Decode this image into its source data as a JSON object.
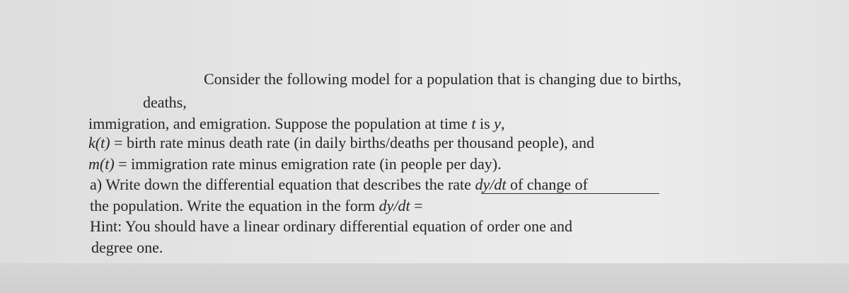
{
  "problem": {
    "lines": [
      [
        "Consider the following model for a population that is changing due to births,"
      ],
      [
        "deaths,"
      ],
      [
        "immigration, and emigration. Suppose the population at time ",
        "t",
        " is ",
        "y",
        ","
      ],
      [
        "k(t)",
        " = birth rate minus death rate (in daily births/deaths per thousand people), and"
      ],
      [
        "m(t)",
        " = immigration rate minus emigration rate (in people per day)."
      ],
      [
        "a) Write down the differential equation that describes the rate ",
        "dy/dt",
        " of change of"
      ],
      [
        "the population. Write the equation in the form ",
        "dy/dt",
        " ="
      ],
      [
        "Hint: You should have a linear ordinary differential equation of order one and"
      ],
      [
        "degree one."
      ]
    ]
  }
}
